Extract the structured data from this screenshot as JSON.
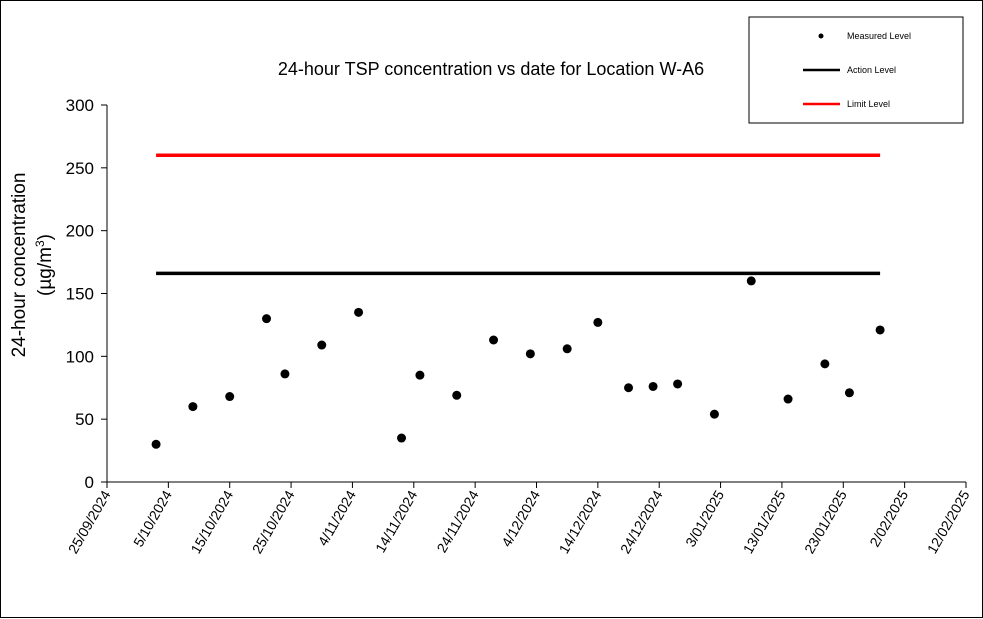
{
  "chart_data": {
    "type": "scatter",
    "title": "24-hour TSP concentration vs date for Location W-A6",
    "ylabel_line1": "24-hour concentration",
    "ylabel_line2_prefix": "(µg/m",
    "ylabel_line2_sup": "3",
    "ylabel_line2_suffix": ")",
    "ylim": [
      0,
      300
    ],
    "yticks": [
      "0",
      "50",
      "100",
      "150",
      "200",
      "250",
      "300"
    ],
    "xlim": [
      "2024-09-25",
      "2025-02-12"
    ],
    "xtick_labels": [
      "25/09/2024",
      "5/10/2024",
      "15/10/2024",
      "25/10/2024",
      "4/11/2024",
      "14/11/2024",
      "24/11/2024",
      "4/12/2024",
      "14/12/2024",
      "24/12/2024",
      "3/01/2025",
      "13/01/2025",
      "23/01/2025",
      "2/02/2025",
      "12/02/2025"
    ],
    "grid": false,
    "legend_position": "top-right",
    "series": [
      {
        "name": "Measured Level",
        "kind": "points",
        "color": "#000000",
        "points": [
          {
            "x": "2024-10-03",
            "y": 30
          },
          {
            "x": "2024-10-09",
            "y": 60
          },
          {
            "x": "2024-10-15",
            "y": 68
          },
          {
            "x": "2024-10-21",
            "y": 130
          },
          {
            "x": "2024-10-24",
            "y": 86
          },
          {
            "x": "2024-10-30",
            "y": 109
          },
          {
            "x": "2024-11-05",
            "y": 135
          },
          {
            "x": "2024-11-12",
            "y": 35
          },
          {
            "x": "2024-11-15",
            "y": 85
          },
          {
            "x": "2024-11-21",
            "y": 69
          },
          {
            "x": "2024-11-27",
            "y": 113
          },
          {
            "x": "2024-12-03",
            "y": 102
          },
          {
            "x": "2024-12-09",
            "y": 106
          },
          {
            "x": "2024-12-14",
            "y": 127
          },
          {
            "x": "2024-12-19",
            "y": 75
          },
          {
            "x": "2024-12-23",
            "y": 76
          },
          {
            "x": "2024-12-27",
            "y": 78
          },
          {
            "x": "2025-01-02",
            "y": 54
          },
          {
            "x": "2025-01-08",
            "y": 160
          },
          {
            "x": "2025-01-14",
            "y": 66
          },
          {
            "x": "2025-01-20",
            "y": 94
          },
          {
            "x": "2025-01-24",
            "y": 71
          },
          {
            "x": "2025-01-29",
            "y": 121
          }
        ]
      },
      {
        "name": "Action Level",
        "kind": "line",
        "color": "#000000",
        "x": [
          "2024-10-03",
          "2025-01-29"
        ],
        "y": [
          166,
          166
        ]
      },
      {
        "name": "Limit Level",
        "kind": "line",
        "color": "#ff0000",
        "x": [
          "2024-10-03",
          "2025-01-29"
        ],
        "y": [
          260,
          260
        ]
      }
    ]
  }
}
